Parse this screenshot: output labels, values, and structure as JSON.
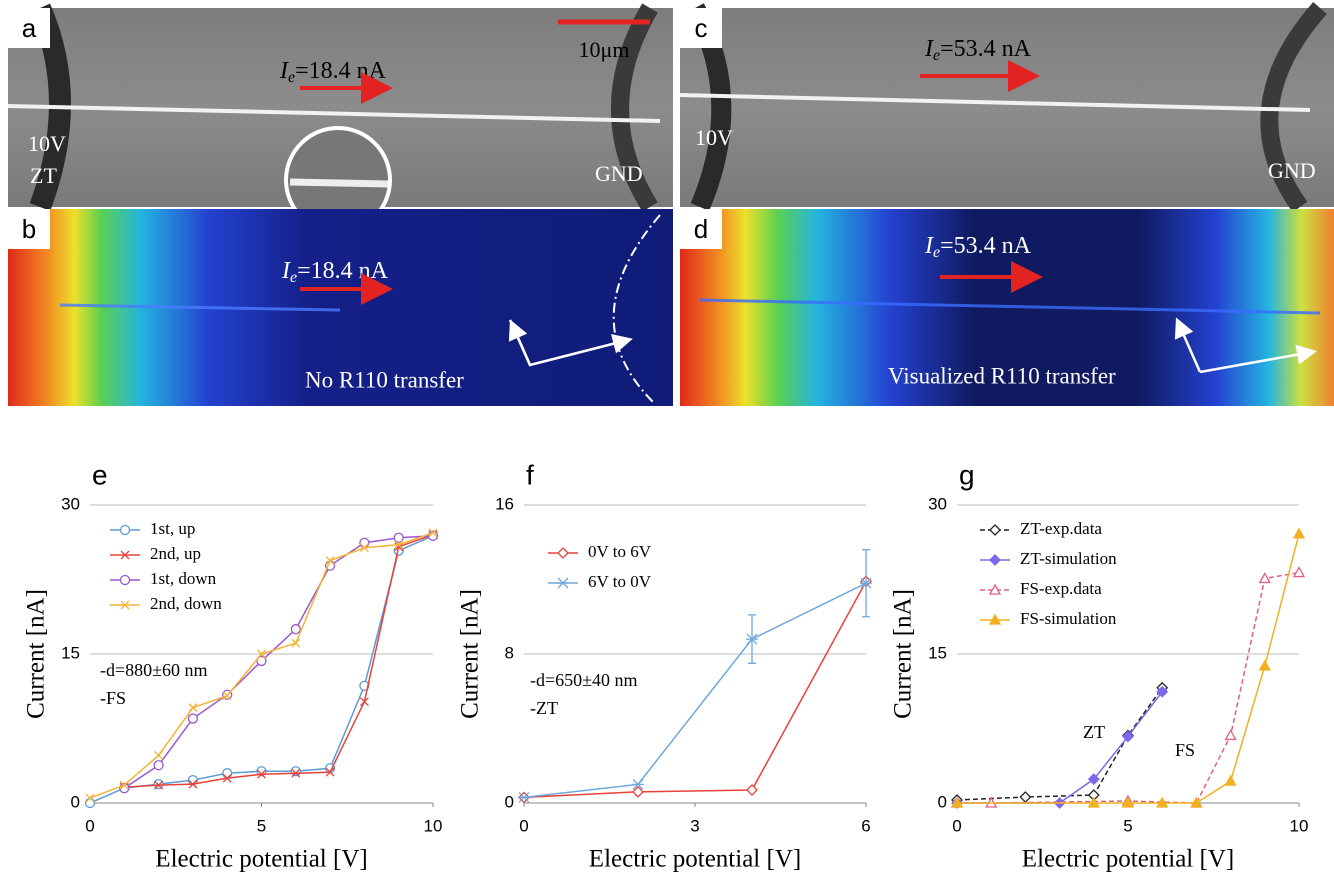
{
  "images": [
    {
      "label": "a",
      "current": {
        "symbol": "I",
        "subscript": "e",
        "value": "=18.4 nA"
      },
      "scale": "10μm",
      "left": [
        "10V",
        "ZT"
      ],
      "right": "GND"
    },
    {
      "label": "b",
      "current": {
        "symbol": "I",
        "subscript": "e",
        "value": "=18.4 nA"
      },
      "note": "No R110 transfer"
    },
    {
      "label": "c",
      "current": {
        "symbol": "I",
        "subscript": "e",
        "value": "=53.4 nA"
      },
      "left": [
        "10V"
      ],
      "right": "GND"
    },
    {
      "label": "d",
      "current": {
        "symbol": "I",
        "subscript": "e",
        "value": "=53.4 nA"
      },
      "note": "Visualized R110 transfer"
    }
  ],
  "chart_data": [
    {
      "type": "line",
      "panel_label": "e",
      "xlabel": "Electric potential [V]",
      "ylabel": "Current [nA]",
      "xlim": [
        0,
        10
      ],
      "xticks": [
        0,
        5,
        10
      ],
      "ylim": [
        0,
        30
      ],
      "yticks": [
        0,
        15,
        30
      ],
      "grid": true,
      "legend": "upper left",
      "annotations": [
        "-d=880±60 nm",
        "-FS"
      ],
      "series": [
        {
          "name": "1st, up",
          "color": "#5b9bd5",
          "marker": "circle",
          "filled": false,
          "dashed": false,
          "x": [
            0,
            1,
            2,
            3,
            4,
            5,
            6,
            7,
            8,
            9,
            10
          ],
          "values": [
            0,
            1.5,
            1.9,
            2.3,
            3.0,
            3.2,
            3.2,
            3.5,
            11.8,
            25.4,
            26.9
          ]
        },
        {
          "name": "2nd, up",
          "color": "#e8413a",
          "marker": "x",
          "filled": false,
          "dashed": false,
          "x": [
            1,
            2,
            3,
            4,
            5,
            6,
            7,
            8,
            9,
            10
          ],
          "values": [
            1.6,
            1.8,
            1.9,
            2.5,
            2.9,
            3.0,
            3.1,
            10.2,
            25.8,
            27.0
          ]
        },
        {
          "name": "1st, down",
          "color": "#9b59d0",
          "marker": "circle",
          "filled": false,
          "dashed": false,
          "x": [
            1,
            2,
            3,
            4,
            5,
            6,
            7,
            8,
            9,
            10
          ],
          "values": [
            1.5,
            3.8,
            8.5,
            10.9,
            14.3,
            17.5,
            23.9,
            26.2,
            26.7,
            26.9
          ]
        },
        {
          "name": "2nd, down",
          "color": "#f5b335",
          "marker": "x",
          "filled": false,
          "dashed": false,
          "x": [
            0,
            1,
            2,
            3,
            4,
            5,
            6,
            7,
            8,
            9,
            10
          ],
          "values": [
            0.5,
            1.8,
            4.8,
            9.6,
            10.8,
            15.0,
            16.1,
            24.4,
            25.7,
            26.0,
            27.2
          ]
        }
      ]
    },
    {
      "type": "line",
      "panel_label": "f",
      "xlabel": "Electric potential [V]",
      "ylabel": "Current [nA]",
      "xlim": [
        0,
        6
      ],
      "xticks": [
        0,
        3,
        6
      ],
      "ylim": [
        0,
        16
      ],
      "yticks": [
        0,
        8,
        16
      ],
      "grid": true,
      "legend": "upper left",
      "annotations": [
        "-d=650±40 nm",
        "-ZT"
      ],
      "series": [
        {
          "name": "0V to 6V",
          "color": "#e8413a",
          "marker": "diamond",
          "filled": false,
          "dashed": false,
          "x": [
            0,
            2,
            4,
            6
          ],
          "values": [
            0.3,
            0.6,
            0.7,
            11.9
          ]
        },
        {
          "name": "6V to 0V",
          "color": "#6fa8dc",
          "marker": "asterisk",
          "filled": false,
          "dashed": false,
          "x": [
            0,
            2,
            4,
            6
          ],
          "values": [
            0.3,
            1.0,
            8.8,
            11.8
          ],
          "errors": [
            null,
            null,
            1.3,
            1.8
          ]
        }
      ]
    },
    {
      "type": "line",
      "panel_label": "g",
      "xlabel": "Electric potential [V]",
      "ylabel": "Current [nA]",
      "xlim": [
        0,
        10
      ],
      "xticks": [
        0,
        5,
        10
      ],
      "ylim": [
        0,
        30
      ],
      "yticks": [
        0,
        15,
        30
      ],
      "grid": true,
      "legend": "upper left",
      "annotations": [
        "ZT",
        "FS"
      ],
      "series": [
        {
          "name": "ZT-exp.data",
          "color": "#222222",
          "marker": "diamond",
          "filled": false,
          "dashed": true,
          "x": [
            0,
            2,
            4,
            5,
            6
          ],
          "values": [
            0.3,
            0.6,
            0.8,
            6.8,
            11.6
          ]
        },
        {
          "name": "ZT-simulation",
          "color": "#7b68ee",
          "marker": "diamond",
          "filled": true,
          "dashed": false,
          "x": [
            0,
            3,
            4,
            5,
            6
          ],
          "values": [
            0,
            0,
            2.4,
            6.7,
            11.2
          ]
        },
        {
          "name": "FS-exp.data",
          "color": "#e0607e",
          "marker": "triangle",
          "filled": false,
          "dashed": true,
          "x": [
            0,
            1,
            5,
            7,
            8,
            9,
            10
          ],
          "values": [
            0,
            0,
            0.2,
            0,
            6.8,
            22.6,
            23.2
          ]
        },
        {
          "name": "FS-simulation",
          "color": "#f0b020",
          "marker": "triangle",
          "filled": true,
          "dashed": false,
          "x": [
            0,
            4,
            5,
            6,
            7,
            8,
            9,
            10
          ],
          "values": [
            0,
            0,
            0,
            0,
            0,
            2.2,
            13.8,
            27.1
          ]
        }
      ]
    }
  ]
}
